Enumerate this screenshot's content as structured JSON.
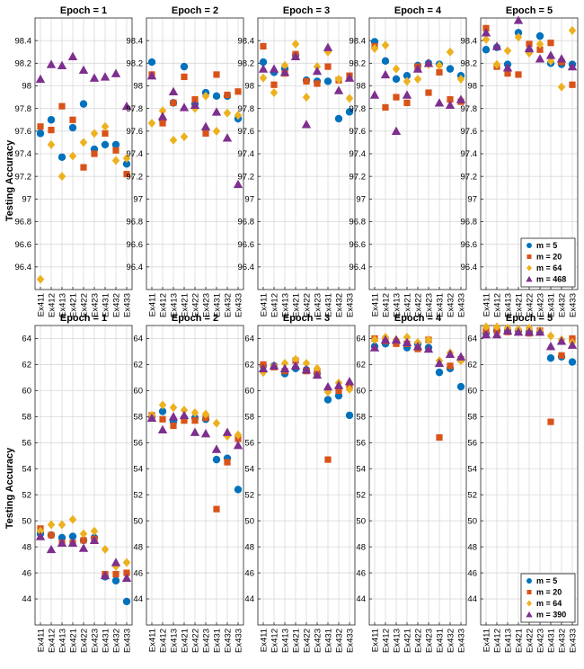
{
  "y_axis_label": "Testing Accuracy",
  "chart_data": [
    {
      "type": "scatter",
      "row": 1,
      "yticks": [
        96.4,
        96.6,
        96.8,
        97,
        97.2,
        97.4,
        97.6,
        97.8,
        98,
        98.2,
        98.4
      ],
      "ylim": [
        96.2,
        98.6
      ],
      "categories": [
        "Ex411",
        "Ex412",
        "Ex413",
        "Ex421",
        "Ex422",
        "Ex423",
        "Ex431",
        "Ex432",
        "Ex433"
      ],
      "legend": [
        "m = 5",
        "m = 20",
        "m = 64",
        "m = 468"
      ],
      "legend_panel": 5,
      "panels": [
        {
          "title": "Epoch = 1",
          "series": [
            {
              "values": [
                97.58,
                97.7,
                97.37,
                97.63,
                97.84,
                97.44,
                97.48,
                97.48,
                97.31
              ]
            },
            {
              "values": [
                97.64,
                97.61,
                97.82,
                97.7,
                97.28,
                97.4,
                97.58,
                97.43,
                97.22
              ]
            },
            {
              "values": [
                96.29,
                97.48,
                97.2,
                97.38,
                97.5,
                97.58,
                97.64,
                97.34,
                97.36
              ]
            },
            {
              "values": [
                98.06,
                98.19,
                98.18,
                98.26,
                98.14,
                98.07,
                98.08,
                98.11,
                97.82
              ]
            }
          ]
        },
        {
          "title": "Epoch = 2",
          "series": [
            {
              "values": [
                98.21,
                97.7,
                97.85,
                98.17,
                97.84,
                97.94,
                97.91,
                97.91,
                97.71
              ]
            },
            {
              "values": [
                98.1,
                97.67,
                97.85,
                98.08,
                97.88,
                97.58,
                98.1,
                97.92,
                97.95
              ]
            },
            {
              "values": [
                97.67,
                97.78,
                97.52,
                97.55,
                97.8,
                97.91,
                97.6,
                97.76,
                97.74
              ]
            },
            {
              "values": [
                98.09,
                97.73,
                97.95,
                97.81,
                97.83,
                97.64,
                97.77,
                97.54,
                97.13
              ]
            }
          ]
        },
        {
          "title": "Epoch = 3",
          "series": [
            {
              "values": [
                98.21,
                98.12,
                98.15,
                98.27,
                98.05,
                98.04,
                98.04,
                97.71,
                97.77
              ]
            },
            {
              "values": [
                98.35,
                98.01,
                98.11,
                98.28,
                98.04,
                98.02,
                98.17,
                98.05,
                98.09
              ]
            },
            {
              "values": [
                98.07,
                97.94,
                98.18,
                98.37,
                97.9,
                98.17,
                98.3,
                98.06,
                97.89
              ]
            },
            {
              "values": [
                98.15,
                98.15,
                98.12,
                98.26,
                97.66,
                98.13,
                98.34,
                97.96,
                98.07
              ]
            }
          ]
        },
        {
          "title": "Epoch = 4",
          "series": [
            {
              "values": [
                98.39,
                98.22,
                98.06,
                98.09,
                98.18,
                98.2,
                98.19,
                98.15,
                98.09
              ]
            },
            {
              "values": [
                98.35,
                97.81,
                97.9,
                97.85,
                98.17,
                97.94,
                98.12,
                97.88,
                97.86
              ]
            },
            {
              "values": [
                98.33,
                98.36,
                98.15,
                98.04,
                98.06,
                98.19,
                98.18,
                98.3,
                98.06
              ]
            },
            {
              "values": [
                97.92,
                98.1,
                97.6,
                97.92,
                98.15,
                98.2,
                97.85,
                97.83,
                97.88
              ]
            }
          ]
        },
        {
          "title": "Epoch = 5",
          "series": [
            {
              "values": [
                98.32,
                98.34,
                98.19,
                98.47,
                98.31,
                98.44,
                98.2,
                98.19,
                98.19
              ]
            },
            {
              "values": [
                98.51,
                98.17,
                98.11,
                98.1,
                98.37,
                98.32,
                98.38,
                98.21,
                98.01
              ]
            },
            {
              "values": [
                98.41,
                98.19,
                98.31,
                98.43,
                98.29,
                98.37,
                98.22,
                97.99,
                98.49
              ]
            },
            {
              "values": [
                98.47,
                98.35,
                98.16,
                98.58,
                98.33,
                98.24,
                98.27,
                98.24,
                98.17
              ]
            }
          ]
        }
      ]
    },
    {
      "type": "scatter",
      "row": 2,
      "yticks": [
        44,
        46,
        48,
        50,
        52,
        54,
        56,
        58,
        60,
        62,
        64
      ],
      "ylim": [
        42,
        65
      ],
      "categories": [
        "Ex411",
        "Ex412",
        "Ex413",
        "Ex421",
        "Ex422",
        "Ex423",
        "Ex431",
        "Ex432",
        "Ex433"
      ],
      "legend": [
        "m = 5",
        "m = 20",
        "m = 64",
        "m = 390"
      ],
      "legend_panel": 5,
      "panels": [
        {
          "title": "Epoch = 1",
          "series": [
            {
              "values": [
                49.0,
                48.9,
                48.7,
                48.8,
                48.5,
                48.7,
                45.7,
                45.4,
                43.8
              ]
            },
            {
              "values": [
                49.4,
                48.9,
                48.3,
                48.3,
                48.5,
                48.6,
                45.9,
                45.9,
                46.0
              ]
            },
            {
              "values": [
                49.2,
                49.7,
                49.7,
                50.1,
                49.0,
                49.2,
                47.8,
                46.5,
                46.8
              ]
            },
            {
              "values": [
                48.8,
                47.8,
                48.3,
                48.3,
                47.9,
                48.5,
                45.8,
                46.8,
                45.6
              ]
            }
          ]
        },
        {
          "title": "Epoch = 2",
          "series": [
            {
              "values": [
                58.0,
                58.4,
                57.6,
                57.9,
                57.9,
                57.8,
                54.7,
                54.8,
                52.4
              ]
            },
            {
              "values": [
                58.1,
                57.8,
                57.3,
                57.7,
                57.7,
                57.9,
                50.9,
                54.5,
                56.3
              ]
            },
            {
              "values": [
                58.1,
                58.9,
                58.7,
                58.5,
                58.3,
                58.2,
                57.5,
                56.5,
                56.6
              ]
            },
            {
              "values": [
                57.9,
                57.0,
                58.0,
                58.1,
                56.8,
                56.7,
                55.5,
                56.8,
                55.8
              ]
            }
          ]
        },
        {
          "title": "Epoch = 3",
          "series": [
            {
              "values": [
                61.9,
                61.9,
                61.3,
                61.7,
                61.6,
                61.3,
                59.3,
                59.6,
                58.1
              ]
            },
            {
              "values": [
                62.0,
                61.8,
                61.5,
                62.3,
                61.5,
                61.4,
                54.7,
                60.0,
                60.4
              ]
            },
            {
              "values": [
                61.4,
                61.9,
                62.1,
                62.4,
                62.1,
                61.7,
                59.9,
                60.6,
                60.1
              ]
            },
            {
              "values": [
                61.7,
                61.9,
                61.7,
                61.9,
                61.6,
                61.2,
                60.3,
                60.4,
                60.7
              ]
            }
          ]
        },
        {
          "title": "Epoch = 4",
          "series": [
            {
              "values": [
                63.4,
                63.6,
                63.7,
                63.3,
                63.6,
                63.3,
                61.4,
                61.7,
                60.3
              ]
            },
            {
              "values": [
                64.0,
                63.8,
                63.6,
                63.6,
                63.2,
                63.9,
                56.4,
                61.9,
                62.4
              ]
            },
            {
              "values": [
                63.9,
                64.1,
                63.9,
                64.1,
                63.7,
                63.9,
                62.3,
                62.9,
                62.3
              ]
            },
            {
              "values": [
                63.3,
                63.9,
                63.9,
                63.7,
                63.4,
                63.2,
                62.1,
                62.8,
                62.6
              ]
            }
          ]
        },
        {
          "title": "Epoch = 5",
          "series": [
            {
              "values": [
                64.4,
                64.6,
                64.6,
                64.6,
                64.5,
                64.5,
                62.5,
                62.6,
                62.2
              ]
            },
            {
              "values": [
                64.6,
                64.6,
                64.5,
                64.5,
                64.4,
                64.6,
                57.6,
                62.7,
                64.0
              ]
            },
            {
              "values": [
                64.9,
                64.9,
                64.8,
                64.7,
                64.8,
                64.6,
                64.2,
                63.9,
                63.7
              ]
            },
            {
              "values": [
                64.3,
                64.3,
                64.6,
                64.5,
                64.5,
                64.5,
                63.4,
                63.8,
                63.5
              ]
            }
          ]
        }
      ]
    }
  ]
}
